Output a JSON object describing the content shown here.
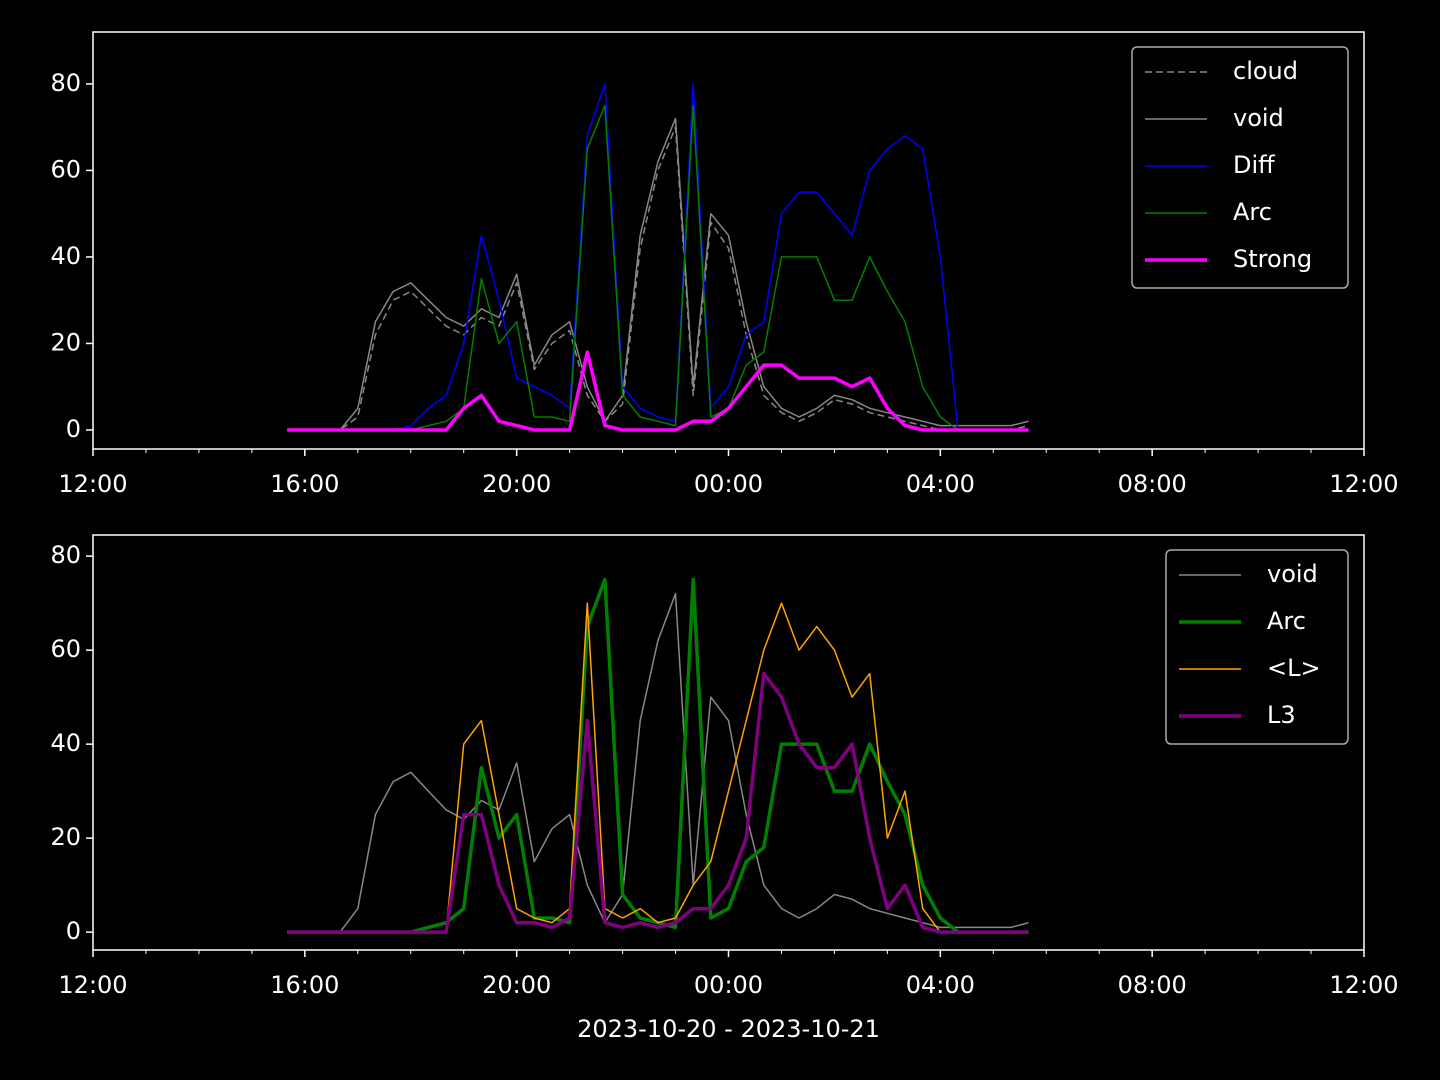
{
  "chart_data": [
    {
      "type": "line",
      "x": [
        "2023-10-20 15:40",
        "2023-10-20 16:00",
        "2023-10-20 16:20",
        "2023-10-20 16:40",
        "2023-10-20 17:00",
        "2023-10-20 17:20",
        "2023-10-20 17:40",
        "2023-10-20 18:00",
        "2023-10-20 18:20",
        "2023-10-20 18:40",
        "2023-10-20 19:00",
        "2023-10-20 19:20",
        "2023-10-20 19:40",
        "2023-10-20 20:00",
        "2023-10-20 20:20",
        "2023-10-20 20:40",
        "2023-10-20 21:00",
        "2023-10-20 21:20",
        "2023-10-20 21:40",
        "2023-10-20 22:00",
        "2023-10-20 22:20",
        "2023-10-20 22:40",
        "2023-10-20 23:00",
        "2023-10-20 23:20",
        "2023-10-20 23:40",
        "2023-10-21 00:00",
        "2023-10-21 00:20",
        "2023-10-21 00:40",
        "2023-10-21 01:00",
        "2023-10-21 01:20",
        "2023-10-21 01:40",
        "2023-10-21 02:00",
        "2023-10-21 02:20",
        "2023-10-21 02:40",
        "2023-10-21 03:00",
        "2023-10-21 03:20",
        "2023-10-21 03:40",
        "2023-10-21 04:00",
        "2023-10-21 04:20",
        "2023-10-21 04:40",
        "2023-10-21 05:00",
        "2023-10-21 05:20",
        "2023-10-21 05:40"
      ],
      "series": [
        {
          "name": "cloud",
          "color": "#888888",
          "dashed": true,
          "linewidth": 1.5,
          "values": [
            0,
            0,
            0,
            0,
            3,
            22,
            30,
            32,
            28,
            24,
            22,
            26,
            24,
            34,
            14,
            20,
            23,
            8,
            2,
            6,
            42,
            60,
            70,
            8,
            48,
            42,
            22,
            8,
            4,
            2,
            4,
            7,
            6,
            4,
            3,
            2,
            1,
            0,
            0,
            0,
            0,
            0,
            1
          ]
        },
        {
          "name": "void",
          "color": "#888888",
          "linewidth": 1.5,
          "values": [
            0,
            0,
            0,
            0,
            5,
            25,
            32,
            34,
            30,
            26,
            24,
            28,
            26,
            36,
            15,
            22,
            25,
            10,
            2,
            8,
            45,
            62,
            72,
            10,
            50,
            45,
            25,
            10,
            5,
            3,
            5,
            8,
            7,
            5,
            4,
            3,
            2,
            1,
            1,
            1,
            1,
            1,
            2
          ]
        },
        {
          "name": "Diff",
          "color": "#0000ff",
          "linewidth": 1.5,
          "values": [
            0,
            0,
            0,
            0,
            0,
            0,
            0,
            1,
            5,
            8,
            20,
            45,
            30,
            12,
            10,
            8,
            5,
            68,
            80,
            10,
            5,
            3,
            2,
            80,
            5,
            10,
            22,
            25,
            50,
            55,
            55,
            50,
            45,
            60,
            65,
            68,
            65,
            40,
            0,
            0,
            0,
            0,
            0
          ]
        },
        {
          "name": "Arc",
          "color": "#008000",
          "linewidth": 1.5,
          "values": [
            0,
            0,
            0,
            0,
            0,
            0,
            0,
            0,
            1,
            2,
            5,
            35,
            20,
            25,
            3,
            3,
            2,
            65,
            75,
            8,
            3,
            2,
            1,
            75,
            3,
            5,
            15,
            18,
            40,
            40,
            40,
            30,
            30,
            40,
            32,
            25,
            10,
            3,
            0,
            0,
            0,
            0,
            0
          ]
        },
        {
          "name": "Strong",
          "color": "#ff00ff",
          "linewidth": 3.5,
          "values": [
            0,
            0,
            0,
            0,
            0,
            0,
            0,
            0,
            0,
            0,
            5,
            8,
            2,
            1,
            0,
            0,
            0,
            18,
            1,
            0,
            0,
            0,
            0,
            2,
            2,
            5,
            10,
            15,
            15,
            12,
            12,
            12,
            10,
            12,
            5,
            1,
            0,
            0,
            0,
            0,
            0,
            0,
            0
          ]
        }
      ],
      "xlim": [
        "2023-10-20 12:00",
        "2023-10-21 12:00"
      ],
      "xticks": [
        {
          "value": "2023-10-20 12:00",
          "label": "12:00"
        },
        {
          "value": "2023-10-20 16:00",
          "label": "16:00"
        },
        {
          "value": "2023-10-20 20:00",
          "label": "20:00"
        },
        {
          "value": "2023-10-21 00:00",
          "label": "00:00"
        },
        {
          "value": "2023-10-21 04:00",
          "label": "04:00"
        },
        {
          "value": "2023-10-21 08:00",
          "label": "08:00"
        },
        {
          "value": "2023-10-21 12:00",
          "label": "12:00"
        }
      ],
      "minor_ticks": true,
      "ylim": [
        -4.4,
        92
      ],
      "yticks": [
        0,
        20,
        40,
        60,
        80
      ],
      "legend": "upper right"
    },
    {
      "type": "line",
      "x": [
        "2023-10-20 15:40",
        "2023-10-20 16:00",
        "2023-10-20 16:20",
        "2023-10-20 16:40",
        "2023-10-20 17:00",
        "2023-10-20 17:20",
        "2023-10-20 17:40",
        "2023-10-20 18:00",
        "2023-10-20 18:20",
        "2023-10-20 18:40",
        "2023-10-20 19:00",
        "2023-10-20 19:20",
        "2023-10-20 19:40",
        "2023-10-20 20:00",
        "2023-10-20 20:20",
        "2023-10-20 20:40",
        "2023-10-20 21:00",
        "2023-10-20 21:20",
        "2023-10-20 21:40",
        "2023-10-20 22:00",
        "2023-10-20 22:20",
        "2023-10-20 22:40",
        "2023-10-20 23:00",
        "2023-10-20 23:20",
        "2023-10-20 23:40",
        "2023-10-21 00:00",
        "2023-10-21 00:20",
        "2023-10-21 00:40",
        "2023-10-21 01:00",
        "2023-10-21 01:20",
        "2023-10-21 01:40",
        "2023-10-21 02:00",
        "2023-10-21 02:20",
        "2023-10-21 02:40",
        "2023-10-21 03:00",
        "2023-10-21 03:20",
        "2023-10-21 03:40",
        "2023-10-21 04:00",
        "2023-10-21 04:20",
        "2023-10-21 04:40",
        "2023-10-21 05:00",
        "2023-10-21 05:20",
        "2023-10-21 05:40"
      ],
      "series": [
        {
          "name": "void",
          "color": "#888888",
          "linewidth": 1.5,
          "values": [
            0,
            0,
            0,
            0,
            5,
            25,
            32,
            34,
            30,
            26,
            24,
            28,
            26,
            36,
            15,
            22,
            25,
            10,
            2,
            8,
            45,
            62,
            72,
            10,
            50,
            45,
            25,
            10,
            5,
            3,
            5,
            8,
            7,
            5,
            4,
            3,
            2,
            1,
            1,
            1,
            1,
            1,
            2
          ]
        },
        {
          "name": "Arc",
          "color": "#008000",
          "linewidth": 3.5,
          "values": [
            0,
            0,
            0,
            0,
            0,
            0,
            0,
            0,
            1,
            2,
            5,
            35,
            20,
            25,
            3,
            3,
            2,
            65,
            75,
            8,
            3,
            2,
            1,
            75,
            3,
            5,
            15,
            18,
            40,
            40,
            40,
            30,
            30,
            40,
            32,
            25,
            10,
            3,
            0,
            0,
            0,
            0,
            0
          ]
        },
        {
          "name": "<L>",
          "color": "#ffa500",
          "linewidth": 1.5,
          "values": [
            0,
            0,
            0,
            0,
            0,
            0,
            0,
            0,
            0,
            0,
            40,
            45,
            25,
            5,
            3,
            2,
            5,
            70,
            5,
            3,
            5,
            2,
            3,
            10,
            15,
            30,
            45,
            60,
            70,
            60,
            65,
            60,
            50,
            55,
            20,
            30,
            5,
            0,
            0,
            0,
            0,
            0,
            0
          ]
        },
        {
          "name": "L3",
          "color": "#800080",
          "linewidth": 3.5,
          "values": [
            0,
            0,
            0,
            0,
            0,
            0,
            0,
            0,
            0,
            0,
            25,
            25,
            10,
            2,
            2,
            1,
            3,
            45,
            2,
            1,
            2,
            1,
            2,
            5,
            5,
            10,
            20,
            55,
            50,
            40,
            35,
            35,
            40,
            20,
            5,
            10,
            1,
            0,
            0,
            0,
            0,
            0,
            0
          ]
        }
      ],
      "xlim": [
        "2023-10-20 12:00",
        "2023-10-21 12:00"
      ],
      "xticks": [
        {
          "value": "2023-10-20 12:00",
          "label": "12:00"
        },
        {
          "value": "2023-10-20 16:00",
          "label": "16:00"
        },
        {
          "value": "2023-10-20 20:00",
          "label": "20:00"
        },
        {
          "value": "2023-10-21 00:00",
          "label": "00:00"
        },
        {
          "value": "2023-10-21 04:00",
          "label": "04:00"
        },
        {
          "value": "2023-10-21 08:00",
          "label": "08:00"
        },
        {
          "value": "2023-10-21 12:00",
          "label": "12:00"
        }
      ],
      "minor_ticks": true,
      "ylim": [
        -3.8,
        84.5
      ],
      "yticks": [
        0,
        20,
        40,
        60,
        80
      ],
      "xlabel": "2023-10-20 - 2023-10-21",
      "legend": "upper right"
    }
  ]
}
